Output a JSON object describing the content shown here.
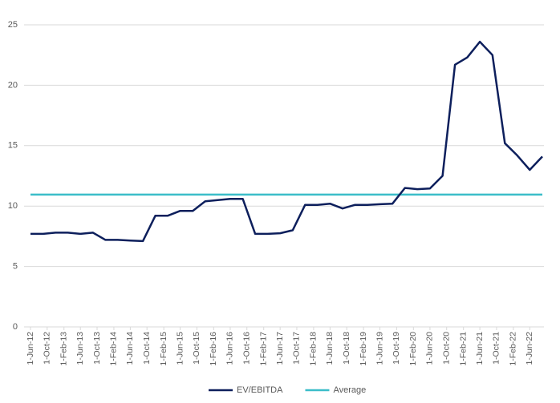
{
  "chart_data": {
    "type": "line",
    "x": [
      "2012-06-01",
      "2012-09-01",
      "2012-12-01",
      "2013-03-01",
      "2013-06-01",
      "2013-09-01",
      "2013-12-01",
      "2014-03-01",
      "2014-06-01",
      "2014-09-01",
      "2014-12-01",
      "2015-03-01",
      "2015-06-01",
      "2015-09-01",
      "2015-12-01",
      "2016-03-01",
      "2016-06-01",
      "2016-09-01",
      "2016-12-01",
      "2017-03-01",
      "2017-06-01",
      "2017-09-01",
      "2017-12-01",
      "2018-03-01",
      "2018-06-01",
      "2018-09-01",
      "2018-12-01",
      "2019-03-01",
      "2019-06-01",
      "2019-09-01",
      "2019-12-01",
      "2020-03-01",
      "2020-06-01",
      "2020-09-01",
      "2020-12-01",
      "2021-03-01",
      "2021-06-01",
      "2021-09-01",
      "2021-12-01",
      "2022-03-01",
      "2022-06-01",
      "2022-09-01"
    ],
    "series": [
      {
        "name": "EV/EBITDA",
        "color": "#0d1f5c",
        "values": [
          7.7,
          7.7,
          7.8,
          7.8,
          7.7,
          7.8,
          7.2,
          7.2,
          7.15,
          7.1,
          9.2,
          9.2,
          9.6,
          9.6,
          10.4,
          10.5,
          10.6,
          10.6,
          7.7,
          7.7,
          7.75,
          8.0,
          10.1,
          10.1,
          10.2,
          9.8,
          10.1,
          10.1,
          10.15,
          10.2,
          11.5,
          11.4,
          11.45,
          12.5,
          21.7,
          22.3,
          23.6,
          22.5,
          15.2,
          14.2,
          13.0,
          14.1
        ]
      },
      {
        "name": "Average",
        "color": "#3bbdc9",
        "values": [
          10.95,
          10.95,
          10.95,
          10.95,
          10.95,
          10.95,
          10.95,
          10.95,
          10.95,
          10.95,
          10.95,
          10.95,
          10.95,
          10.95,
          10.95,
          10.95,
          10.95,
          10.95,
          10.95,
          10.95,
          10.95,
          10.95,
          10.95,
          10.95,
          10.95,
          10.95,
          10.95,
          10.95,
          10.95,
          10.95,
          10.95,
          10.95,
          10.95,
          10.95,
          10.95,
          10.95,
          10.95,
          10.95,
          10.95,
          10.95,
          10.95,
          10.95
        ]
      }
    ],
    "ylim": [
      0,
      25
    ],
    "yticks": [
      0,
      5,
      10,
      15,
      20,
      25
    ],
    "xticks": [
      {
        "value": "2012-06-01",
        "label": "1-Jun-12"
      },
      {
        "value": "2012-10-01",
        "label": "1-Oct-12"
      },
      {
        "value": "2013-02-01",
        "label": "1-Feb-13"
      },
      {
        "value": "2013-06-01",
        "label": "1-Jun-13"
      },
      {
        "value": "2013-10-01",
        "label": "1-Oct-13"
      },
      {
        "value": "2014-02-01",
        "label": "1-Feb-14"
      },
      {
        "value": "2014-06-01",
        "label": "1-Jun-14"
      },
      {
        "value": "2014-10-01",
        "label": "1-Oct-14"
      },
      {
        "value": "2015-02-01",
        "label": "1-Feb-15"
      },
      {
        "value": "2015-06-01",
        "label": "1-Jun-15"
      },
      {
        "value": "2015-10-01",
        "label": "1-Oct-15"
      },
      {
        "value": "2016-02-01",
        "label": "1-Feb-16"
      },
      {
        "value": "2016-06-01",
        "label": "1-Jun-16"
      },
      {
        "value": "2016-10-01",
        "label": "1-Oct-16"
      },
      {
        "value": "2017-02-01",
        "label": "1-Feb-17"
      },
      {
        "value": "2017-06-01",
        "label": "1-Jun-17"
      },
      {
        "value": "2017-10-01",
        "label": "1-Oct-17"
      },
      {
        "value": "2018-02-01",
        "label": "1-Feb-18"
      },
      {
        "value": "2018-06-01",
        "label": "1-Jun-18"
      },
      {
        "value": "2018-10-01",
        "label": "1-Oct-18"
      },
      {
        "value": "2019-02-01",
        "label": "1-Feb-19"
      },
      {
        "value": "2019-06-01",
        "label": "1-Jun-19"
      },
      {
        "value": "2019-10-01",
        "label": "1-Oct-19"
      },
      {
        "value": "2020-02-01",
        "label": "1-Feb-20"
      },
      {
        "value": "2020-06-01",
        "label": "1-Jun-20"
      },
      {
        "value": "2020-10-01",
        "label": "1-Oct-20"
      },
      {
        "value": "2021-02-01",
        "label": "1-Feb-21"
      },
      {
        "value": "2021-06-01",
        "label": "1-Jun-21"
      },
      {
        "value": "2021-10-01",
        "label": "1-Oct-21"
      },
      {
        "value": "2022-02-01",
        "label": "1-Feb-22"
      },
      {
        "value": "2022-06-01",
        "label": "1-Jun-22"
      }
    ],
    "grid": true,
    "legend": "bottom"
  }
}
